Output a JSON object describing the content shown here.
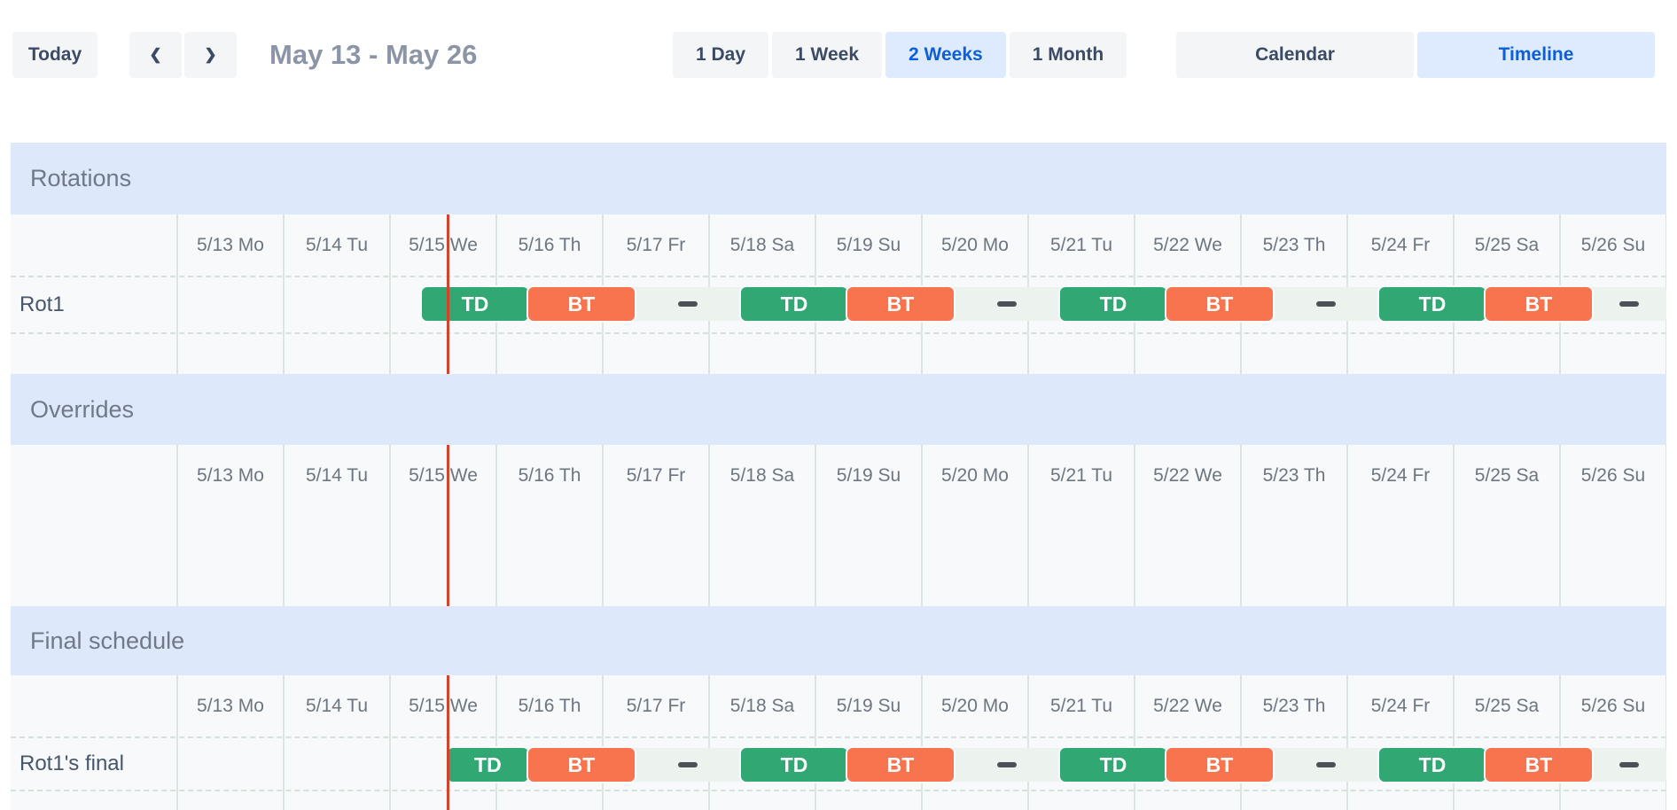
{
  "toolbar": {
    "today_label": "Today",
    "prev_icon": "❮",
    "next_icon": "❯",
    "title": "May 13 - May 26",
    "views": [
      {
        "label": "1 Day",
        "active": false
      },
      {
        "label": "1 Week",
        "active": false
      },
      {
        "label": "2 Weeks",
        "active": true
      },
      {
        "label": "1 Month",
        "active": false
      }
    ],
    "modes": [
      {
        "label": "Calendar",
        "active": false
      },
      {
        "label": "Timeline",
        "active": true
      }
    ]
  },
  "days": [
    "5/13 Mo",
    "5/14 Tu",
    "5/15 We",
    "5/16 Th",
    "5/17 Fr",
    "5/18 Sa",
    "5/19 Su",
    "5/20 Mo",
    "5/21 Tu",
    "5/22 We",
    "5/23 Th",
    "5/24 Fr",
    "5/25 Sa",
    "5/26 Su"
  ],
  "now_day_offset": 2.54,
  "sections": [
    {
      "id": "rotations",
      "title": "Rotations",
      "rows": [
        {
          "label": "Rot1",
          "track_start": 2.3,
          "shifts": [
            {
              "kind": "td",
              "label": "TD",
              "start": 2.3,
              "end": 3.3
            },
            {
              "kind": "bt",
              "label": "BT",
              "start": 3.3,
              "end": 4.3
            },
            {
              "kind": "empty",
              "label": "",
              "start": 4.3,
              "end": 5.3
            },
            {
              "kind": "td",
              "label": "TD",
              "start": 5.3,
              "end": 6.3
            },
            {
              "kind": "bt",
              "label": "BT",
              "start": 6.3,
              "end": 7.3
            },
            {
              "kind": "empty",
              "label": "",
              "start": 7.3,
              "end": 8.3
            },
            {
              "kind": "td",
              "label": "TD",
              "start": 8.3,
              "end": 9.3
            },
            {
              "kind": "bt",
              "label": "BT",
              "start": 9.3,
              "end": 10.3
            },
            {
              "kind": "empty",
              "label": "",
              "start": 10.3,
              "end": 11.3
            },
            {
              "kind": "td",
              "label": "TD",
              "start": 11.3,
              "end": 12.3
            },
            {
              "kind": "bt",
              "label": "BT",
              "start": 12.3,
              "end": 13.3
            },
            {
              "kind": "empty",
              "label": "",
              "start": 13.3,
              "end": 14
            }
          ]
        }
      ]
    },
    {
      "id": "overrides",
      "title": "Overrides",
      "rows": []
    },
    {
      "id": "final",
      "title": "Final schedule",
      "rows": [
        {
          "label": "Rot1's final",
          "track_start": 2.54,
          "shifts": [
            {
              "kind": "td",
              "label": "TD",
              "start": 2.54,
              "end": 3.3
            },
            {
              "kind": "bt",
              "label": "BT",
              "start": 3.3,
              "end": 4.3
            },
            {
              "kind": "empty",
              "label": "",
              "start": 4.3,
              "end": 5.3
            },
            {
              "kind": "td",
              "label": "TD",
              "start": 5.3,
              "end": 6.3
            },
            {
              "kind": "bt",
              "label": "BT",
              "start": 6.3,
              "end": 7.3
            },
            {
              "kind": "empty",
              "label": "",
              "start": 7.3,
              "end": 8.3
            },
            {
              "kind": "td",
              "label": "TD",
              "start": 8.3,
              "end": 9.3
            },
            {
              "kind": "bt",
              "label": "BT",
              "start": 9.3,
              "end": 10.3
            },
            {
              "kind": "empty",
              "label": "",
              "start": 10.3,
              "end": 11.3
            },
            {
              "kind": "td",
              "label": "TD",
              "start": 11.3,
              "end": 12.3
            },
            {
              "kind": "bt",
              "label": "BT",
              "start": 12.3,
              "end": 13.3
            },
            {
              "kind": "empty",
              "label": "",
              "start": 13.3,
              "end": 14
            }
          ]
        }
      ]
    }
  ],
  "colors": {
    "shift_td": "#31a873",
    "shift_bt": "#f7744e",
    "empty_track": "#ecf2ee",
    "empty_dash": "#4c5157",
    "now_line": "#d5432c",
    "section_header_bg": "#dee8fb",
    "button_bg": "#f4f5f7",
    "button_text": "#3b4a66",
    "active_button_bg": "#deebff",
    "active_button_text": "#0b5fdd"
  }
}
